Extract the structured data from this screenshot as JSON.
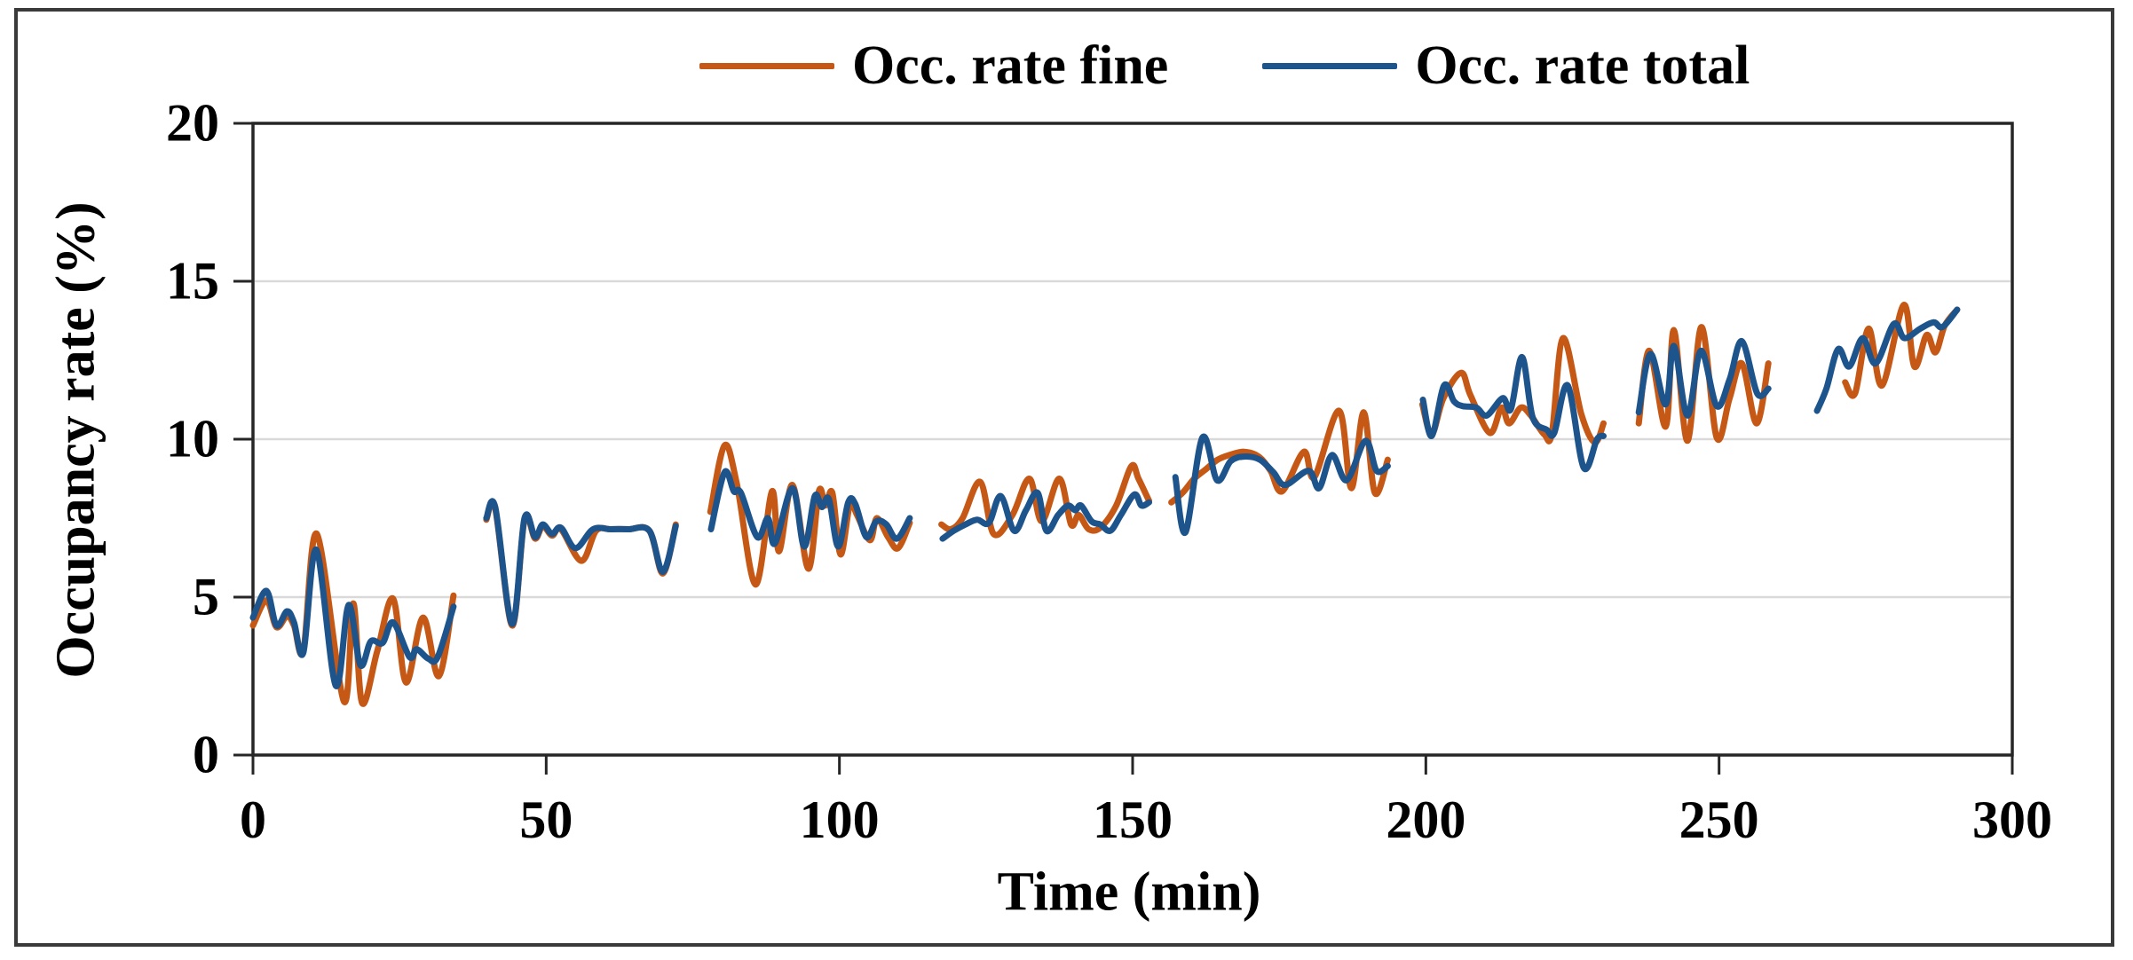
{
  "figure": {
    "background": "#ffffff",
    "border_color": "#3a3a3a"
  },
  "chart_data": {
    "type": "line",
    "title": "",
    "xlabel": "Time (min)",
    "ylabel": "Occupancy rate  (%)",
    "xlim": [
      0,
      300
    ],
    "ylim": [
      0,
      20
    ],
    "xticks": [
      0,
      50,
      100,
      150,
      200,
      250,
      300
    ],
    "yticks": [
      0,
      5,
      10,
      15,
      20
    ],
    "gridlines_y": [
      5,
      10,
      15
    ],
    "grid_on": true,
    "grid_color": "#d9d9d9",
    "axis_color": "#262626",
    "legend_position": "top-center",
    "line_width": 7,
    "series": [
      {
        "name": "Occ. rate fine",
        "color": "#c65816",
        "segments": [
          [
            [
              0,
              4.1
            ],
            [
              2.3,
              4.9
            ],
            [
              4,
              4.05
            ],
            [
              5.8,
              4.4
            ],
            [
              7,
              4.1
            ],
            [
              8.6,
              3.3
            ],
            [
              10.9,
              7.0
            ],
            [
              15.5,
              1.7
            ],
            [
              17.1,
              4.8
            ],
            [
              18.6,
              1.65
            ],
            [
              21.2,
              3.3
            ],
            [
              23.9,
              4.95
            ],
            [
              26.1,
              2.3
            ],
            [
              29,
              4.35
            ],
            [
              31.7,
              2.5
            ],
            [
              34.2,
              5.05
            ]
          ],
          [
            [
              39.8,
              7.45
            ],
            [
              41.3,
              7.8
            ],
            [
              44.2,
              4.1
            ],
            [
              46.3,
              7.45
            ],
            [
              48.1,
              6.85
            ],
            [
              49.4,
              7.25
            ],
            [
              51,
              6.95
            ],
            [
              52.5,
              7.15
            ],
            [
              56,
              6.15
            ],
            [
              58.5,
              7.1
            ],
            [
              61,
              7.15
            ],
            [
              64,
              7.15
            ],
            [
              67.6,
              7.1
            ],
            [
              69.9,
              5.75
            ],
            [
              72.1,
              7.3
            ]
          ],
          [
            [
              78,
              7.7
            ],
            [
              80.4,
              9.8
            ],
            [
              82.5,
              8.6
            ],
            [
              85.7,
              5.4
            ],
            [
              88.5,
              8.35
            ],
            [
              89.7,
              6.45
            ],
            [
              92,
              8.55
            ],
            [
              94.7,
              5.9
            ],
            [
              96.5,
              8.35
            ],
            [
              97.6,
              7.9
            ],
            [
              98.8,
              8.3
            ],
            [
              100.2,
              6.35
            ],
            [
              101.8,
              7.95
            ],
            [
              103,
              7.6
            ],
            [
              105.2,
              6.8
            ],
            [
              106.4,
              7.5
            ],
            [
              108.3,
              6.9
            ],
            [
              110,
              6.55
            ],
            [
              112,
              7.35
            ]
          ],
          [
            [
              117.4,
              7.3
            ],
            [
              119,
              7.15
            ],
            [
              121,
              7.5
            ],
            [
              124,
              8.65
            ],
            [
              126.3,
              7.0
            ],
            [
              129.5,
              7.6
            ],
            [
              132.4,
              8.75
            ],
            [
              134.5,
              7.4
            ],
            [
              137.5,
              8.75
            ],
            [
              139.5,
              7.3
            ],
            [
              140.8,
              7.6
            ],
            [
              142.5,
              7.15
            ],
            [
              144.5,
              7.2
            ],
            [
              147.2,
              7.9
            ],
            [
              149.8,
              9.15
            ],
            [
              151,
              8.75
            ],
            [
              152.8,
              8.05
            ]
          ],
          [
            [
              156.6,
              8.0
            ],
            [
              158.5,
              8.3
            ],
            [
              160.5,
              8.75
            ],
            [
              162.5,
              9.05
            ],
            [
              164.5,
              9.35
            ],
            [
              166.5,
              9.5
            ],
            [
              169,
              9.6
            ],
            [
              171.5,
              9.45
            ],
            [
              173.5,
              9.0
            ],
            [
              175.5,
              8.35
            ],
            [
              179.2,
              9.6
            ],
            [
              181,
              8.8
            ],
            [
              185.2,
              10.9
            ],
            [
              187.3,
              8.45
            ],
            [
              189.4,
              10.85
            ],
            [
              191.3,
              8.3
            ],
            [
              193.5,
              9.35
            ]
          ],
          [
            [
              199.4,
              11.1
            ],
            [
              201,
              10.15
            ],
            [
              203,
              11.3
            ],
            [
              206,
              12.1
            ],
            [
              207.6,
              11.4
            ],
            [
              210.9,
              10.2
            ],
            [
              212.9,
              11.0
            ],
            [
              214.2,
              10.5
            ],
            [
              216.2,
              11.0
            ],
            [
              217.9,
              10.75
            ],
            [
              220.2,
              10.15
            ],
            [
              221.5,
              10.2
            ],
            [
              223.4,
              13.2
            ],
            [
              226.5,
              10.8
            ],
            [
              228.8,
              9.9
            ],
            [
              230.3,
              10.5
            ]
          ],
          [
            [
              236.3,
              10.5
            ],
            [
              238.1,
              12.8
            ],
            [
              240.9,
              10.4
            ],
            [
              242.3,
              13.45
            ],
            [
              244.6,
              9.95
            ],
            [
              247,
              13.55
            ],
            [
              249.6,
              10.05
            ],
            [
              251.8,
              11.3
            ],
            [
              253.9,
              12.4
            ],
            [
              256.4,
              10.5
            ],
            [
              258.4,
              12.4
            ]
          ],
          [
            [
              271.5,
              11.8
            ],
            [
              273.2,
              11.45
            ],
            [
              275.5,
              13.5
            ],
            [
              277.8,
              11.7
            ],
            [
              281.5,
              14.25
            ],
            [
              283.3,
              12.3
            ],
            [
              285.4,
              13.3
            ],
            [
              286.9,
              12.75
            ],
            [
              288.5,
              13.6
            ],
            [
              290.6,
              14.1
            ]
          ]
        ]
      },
      {
        "name": "Occ. rate total",
        "color": "#1e548c",
        "segments": [
          [
            [
              0,
              4.35
            ],
            [
              2.3,
              5.2
            ],
            [
              4,
              4.1
            ],
            [
              5.8,
              4.55
            ],
            [
              7,
              4.2
            ],
            [
              8.6,
              3.25
            ],
            [
              10.8,
              6.5
            ],
            [
              14.1,
              2.2
            ],
            [
              16.3,
              4.75
            ],
            [
              18.3,
              2.85
            ],
            [
              20.1,
              3.6
            ],
            [
              22.1,
              3.55
            ],
            [
              23.9,
              4.2
            ],
            [
              26.7,
              3.1
            ],
            [
              27.9,
              3.35
            ],
            [
              29.9,
              3.05
            ],
            [
              31.5,
              3.1
            ],
            [
              34.2,
              4.7
            ]
          ],
          [
            [
              39.8,
              7.5
            ],
            [
              41.3,
              7.85
            ],
            [
              44.2,
              4.15
            ],
            [
              46.3,
              7.5
            ],
            [
              48.1,
              6.9
            ],
            [
              49.4,
              7.3
            ],
            [
              51,
              7.0
            ],
            [
              52.5,
              7.2
            ],
            [
              55,
              6.55
            ],
            [
              58,
              7.15
            ],
            [
              61,
              7.15
            ],
            [
              64,
              7.15
            ],
            [
              67.6,
              7.1
            ],
            [
              69.9,
              5.8
            ],
            [
              72.1,
              7.25
            ]
          ],
          [
            [
              78.1,
              7.15
            ],
            [
              80.4,
              8.95
            ],
            [
              82,
              8.35
            ],
            [
              83.2,
              8.3
            ],
            [
              86,
              6.9
            ],
            [
              87.8,
              7.5
            ],
            [
              89,
              6.7
            ],
            [
              92,
              8.45
            ],
            [
              94,
              6.6
            ],
            [
              95.8,
              8.2
            ],
            [
              97,
              7.85
            ],
            [
              98.2,
              8.1
            ],
            [
              99.8,
              6.6
            ],
            [
              101.5,
              8.0
            ],
            [
              102.7,
              7.95
            ],
            [
              104.6,
              6.9
            ],
            [
              106.3,
              7.4
            ],
            [
              108,
              7.3
            ],
            [
              109.8,
              6.85
            ],
            [
              112,
              7.5
            ]
          ],
          [
            [
              117.6,
              6.85
            ],
            [
              119.5,
              7.1
            ],
            [
              121.5,
              7.3
            ],
            [
              123.5,
              7.45
            ],
            [
              125.5,
              7.35
            ],
            [
              127.5,
              8.2
            ],
            [
              129.8,
              7.1
            ],
            [
              131.8,
              7.75
            ],
            [
              133.8,
              8.3
            ],
            [
              135.3,
              7.1
            ],
            [
              137.3,
              7.6
            ],
            [
              139,
              7.9
            ],
            [
              140.2,
              7.75
            ],
            [
              141.2,
              7.9
            ],
            [
              143,
              7.4
            ],
            [
              144.5,
              7.3
            ],
            [
              146.2,
              7.1
            ],
            [
              148,
              7.6
            ],
            [
              150.3,
              8.25
            ],
            [
              151.5,
              7.9
            ],
            [
              152.8,
              8.0
            ]
          ],
          [
            [
              157.3,
              8.8
            ],
            [
              159,
              7.05
            ],
            [
              161.9,
              10.05
            ],
            [
              164.4,
              8.7
            ],
            [
              166.7,
              9.3
            ],
            [
              169,
              9.45
            ],
            [
              171.7,
              9.35
            ],
            [
              174,
              8.95
            ],
            [
              176,
              8.55
            ],
            [
              180,
              9.0
            ],
            [
              181.8,
              8.45
            ],
            [
              184,
              9.5
            ],
            [
              186.5,
              8.7
            ],
            [
              189.7,
              9.95
            ],
            [
              191.6,
              9.0
            ],
            [
              193.5,
              9.15
            ]
          ],
          [
            [
              199.5,
              11.25
            ],
            [
              201,
              10.1
            ],
            [
              203.1,
              11.7
            ],
            [
              204.8,
              11.2
            ],
            [
              206.2,
              11.05
            ],
            [
              208.6,
              11.0
            ],
            [
              210.4,
              10.75
            ],
            [
              213.1,
              11.3
            ],
            [
              214.5,
              10.95
            ],
            [
              216.4,
              12.6
            ],
            [
              218.2,
              10.7
            ],
            [
              220.6,
              10.3
            ],
            [
              221.9,
              10.2
            ],
            [
              224.2,
              11.7
            ],
            [
              226.9,
              9.1
            ],
            [
              229.2,
              10.0
            ],
            [
              230.3,
              10.1
            ]
          ],
          [
            [
              236.3,
              10.85
            ],
            [
              238.3,
              12.7
            ],
            [
              240.9,
              11.1
            ],
            [
              242.3,
              12.95
            ],
            [
              244.6,
              10.75
            ],
            [
              246.9,
              12.8
            ],
            [
              249.6,
              11.05
            ],
            [
              251.8,
              11.9
            ],
            [
              253.9,
              13.1
            ],
            [
              256.5,
              11.45
            ],
            [
              258.4,
              11.6
            ]
          ],
          [
            [
              266.7,
              10.9
            ],
            [
              268.3,
              11.6
            ],
            [
              270.3,
              12.85
            ],
            [
              272.2,
              12.3
            ],
            [
              274.5,
              13.2
            ],
            [
              276.7,
              12.4
            ],
            [
              279.8,
              13.65
            ],
            [
              281.6,
              13.2
            ],
            [
              284.3,
              13.5
            ],
            [
              286.6,
              13.7
            ],
            [
              288.1,
              13.55
            ],
            [
              290.6,
              14.1
            ]
          ]
        ]
      }
    ]
  }
}
